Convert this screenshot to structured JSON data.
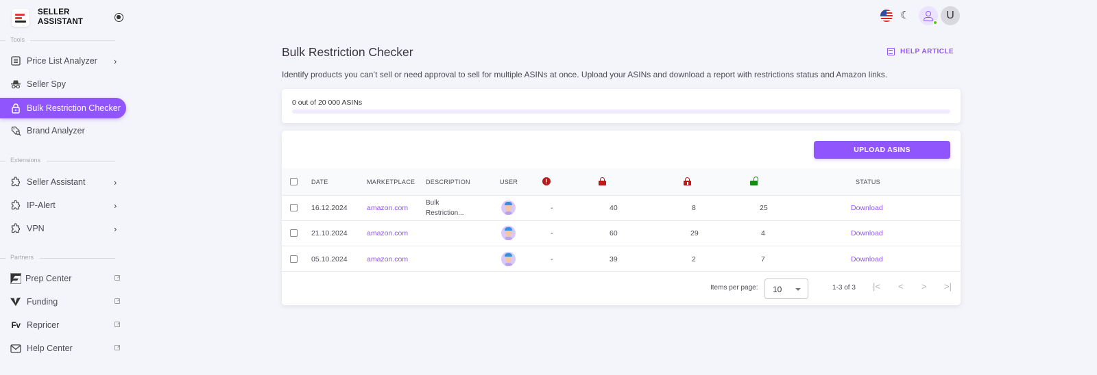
{
  "brand": {
    "line1": "SELLER",
    "line2": "ASSISTANT",
    "logo_colors": [
      "#e53935",
      "#e53935",
      "#222222"
    ]
  },
  "sidebar": {
    "sections": [
      {
        "label": "Tools",
        "items": [
          {
            "label": "Price List Analyzer",
            "icon": "list-icon",
            "trailing": "chevron-right"
          },
          {
            "label": "Seller Spy",
            "icon": "spy-icon",
            "trailing": ""
          },
          {
            "label": "Bulk Restriction Checker",
            "icon": "lock-icon",
            "trailing": "",
            "active": true
          },
          {
            "label": "Brand Analyzer",
            "icon": "tag-search-icon",
            "trailing": ""
          }
        ]
      },
      {
        "label": "Extensions",
        "items": [
          {
            "label": "Seller Assistant",
            "icon": "puzzle-icon",
            "trailing": "chevron-right"
          },
          {
            "label": "IP-Alert",
            "icon": "puzzle-icon",
            "trailing": "chevron-right"
          },
          {
            "label": "VPN",
            "icon": "puzzle-icon",
            "trailing": "chevron-right"
          }
        ]
      },
      {
        "label": "Partners",
        "items": [
          {
            "label": "Prep Center",
            "icon": "prep-center-logo-icon",
            "trailing": "external-link"
          },
          {
            "label": "Funding",
            "icon": "funding-logo-icon",
            "trailing": "external-link"
          },
          {
            "label": "Repricer",
            "icon": "repricer-logo-icon",
            "trailing": "external-link"
          },
          {
            "label": "Help Center",
            "icon": "mail-icon",
            "trailing": "external-link"
          }
        ]
      }
    ]
  },
  "topbar": {
    "language": "us-flag-icon",
    "theme": "moon-icon",
    "user_avatar_letter": "U",
    "online_status_color": "#56ca00"
  },
  "page": {
    "title": "Bulk Restriction Checker",
    "help_link": "HELP ARTICLE",
    "subtitle": "Identify products you can’t sell or need approval to sell for multiple ASINs at once. Upload your ASINs and download a report with restrictions status and Amazon links."
  },
  "progress": {
    "text": "0 out of 20 000 ASINs",
    "used": 0,
    "total": 20000,
    "percent": 0
  },
  "table": {
    "upload_button": "UPLOAD ASINS",
    "columns": [
      "DATE",
      "MARKETPLACE",
      "DESCRIPTION",
      "USER",
      "error-icon",
      "lock-icon",
      "approval-lock-icon",
      "unlocked-icon",
      "STATUS"
    ],
    "headers": {
      "date": "DATE",
      "marketplace": "MARKETPLACE",
      "description": "DESCRIPTION",
      "user": "USER",
      "status": "STATUS"
    },
    "rows": [
      {
        "date": "16.12.2024",
        "marketplace": "amazon.com",
        "description_l1": "Bulk",
        "description_l2": "Restriction...",
        "errors": "-",
        "restricted": "40",
        "approval": "8",
        "unrestricted": "25",
        "status": "Download"
      },
      {
        "date": "21.10.2024",
        "marketplace": "amazon.com",
        "description_l1": "",
        "description_l2": "",
        "errors": "-",
        "restricted": "60",
        "approval": "29",
        "unrestricted": "4",
        "status": "Download"
      },
      {
        "date": "05.10.2024",
        "marketplace": "amazon.com",
        "description_l1": "",
        "description_l2": "",
        "errors": "-",
        "restricted": "39",
        "approval": "2",
        "unrestricted": "7",
        "status": "Download"
      }
    ]
  },
  "pagination": {
    "items_per_page_label": "Items per page:",
    "items_per_page": "10",
    "range": "1-3 of 3",
    "first": "|<",
    "prev": "<",
    "next": ">",
    "last": ">|"
  },
  "colors": {
    "accent": "#9155fd",
    "background": "#f4f5fa",
    "error_red": "#b71c1c",
    "lock_red": "#c01818",
    "unlock_green": "#158a15"
  }
}
